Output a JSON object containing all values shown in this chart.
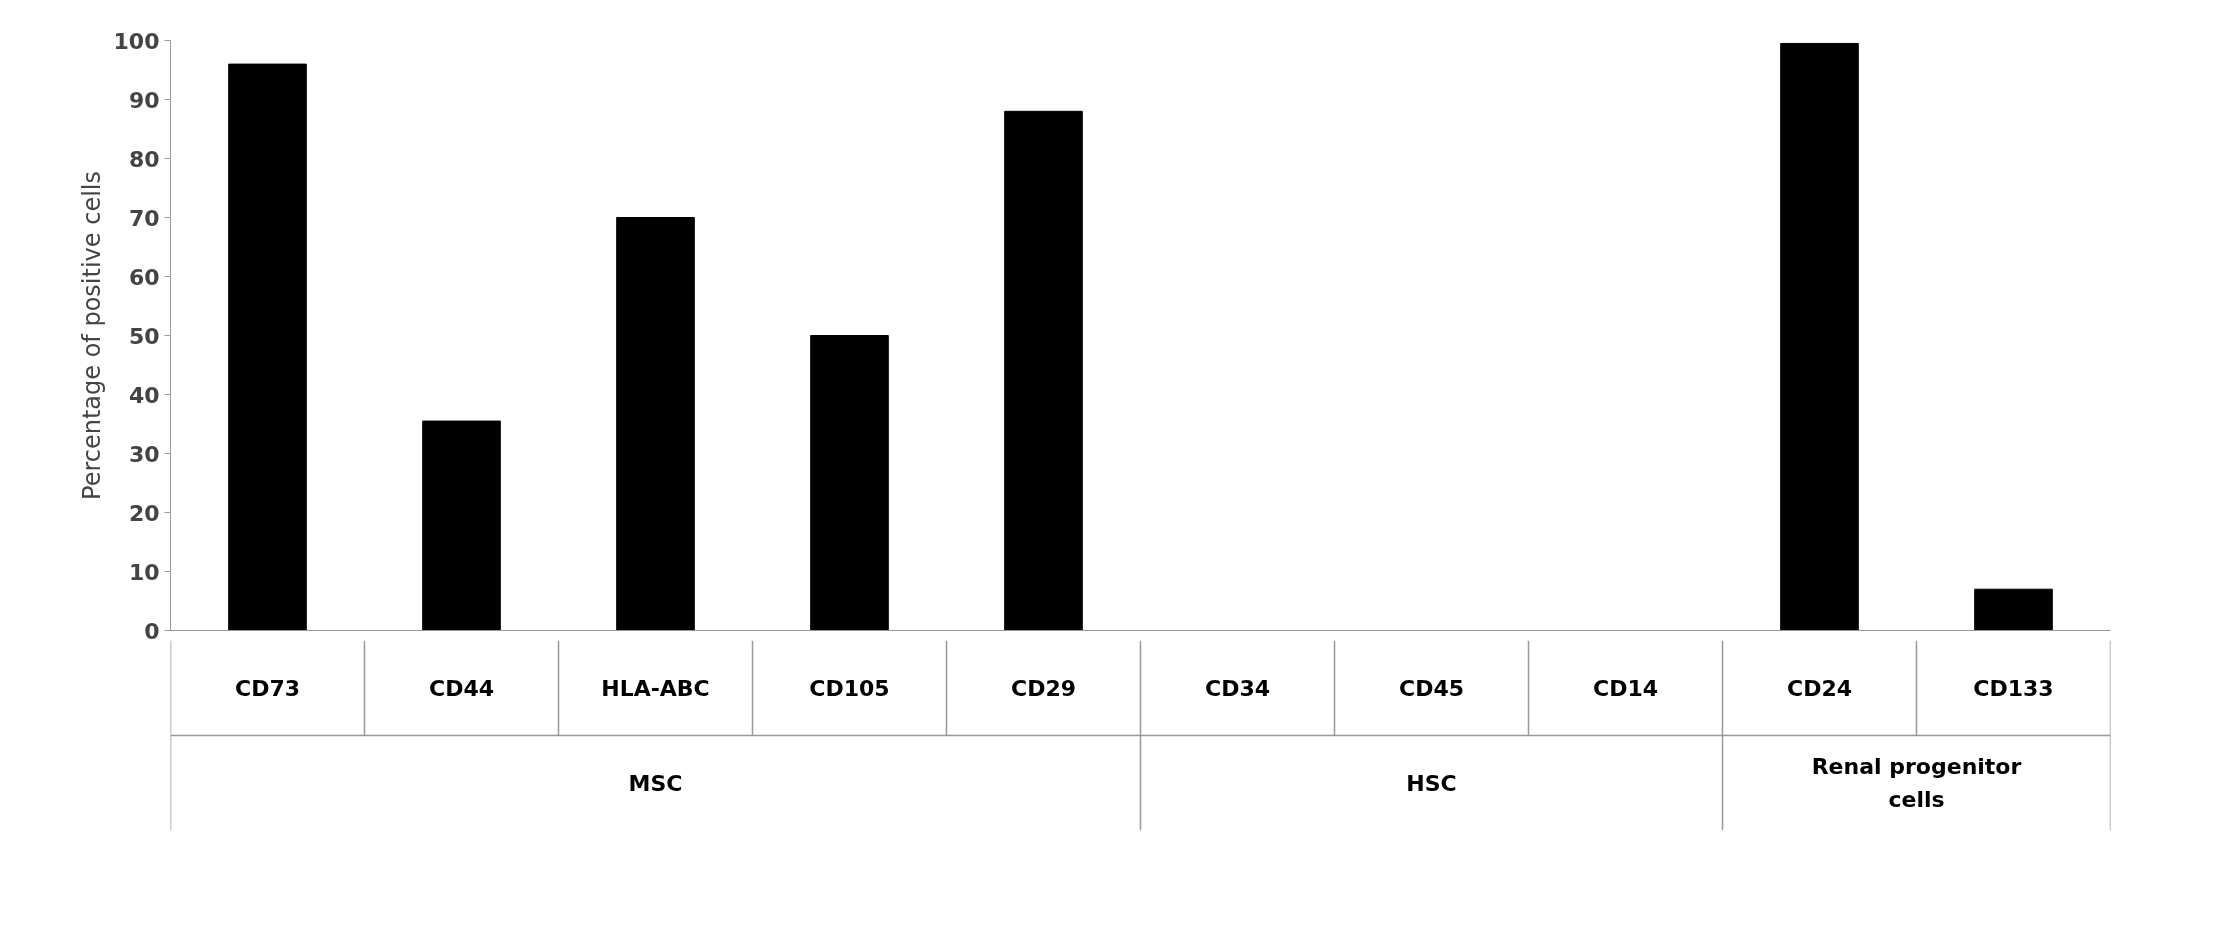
{
  "chart_data": {
    "type": "bar",
    "ylabel": "Percentage of positive cells",
    "categories": [
      "CD73",
      "CD44",
      "HLA-ABC",
      "CD105",
      "CD29",
      "CD34",
      "CD45",
      "CD14",
      "CD24",
      "CD133"
    ],
    "values": [
      96,
      35.5,
      70,
      50,
      88,
      0,
      0,
      0,
      99.5,
      7
    ],
    "color": "#000000",
    "ylim": [
      0,
      100
    ],
    "yticks": [
      0,
      10,
      20,
      30,
      40,
      50,
      60,
      70,
      80,
      90,
      100
    ],
    "annotations": [
      "MSC",
      "HSC",
      "Renal progenitor cells"
    ],
    "grid": false
  }
}
